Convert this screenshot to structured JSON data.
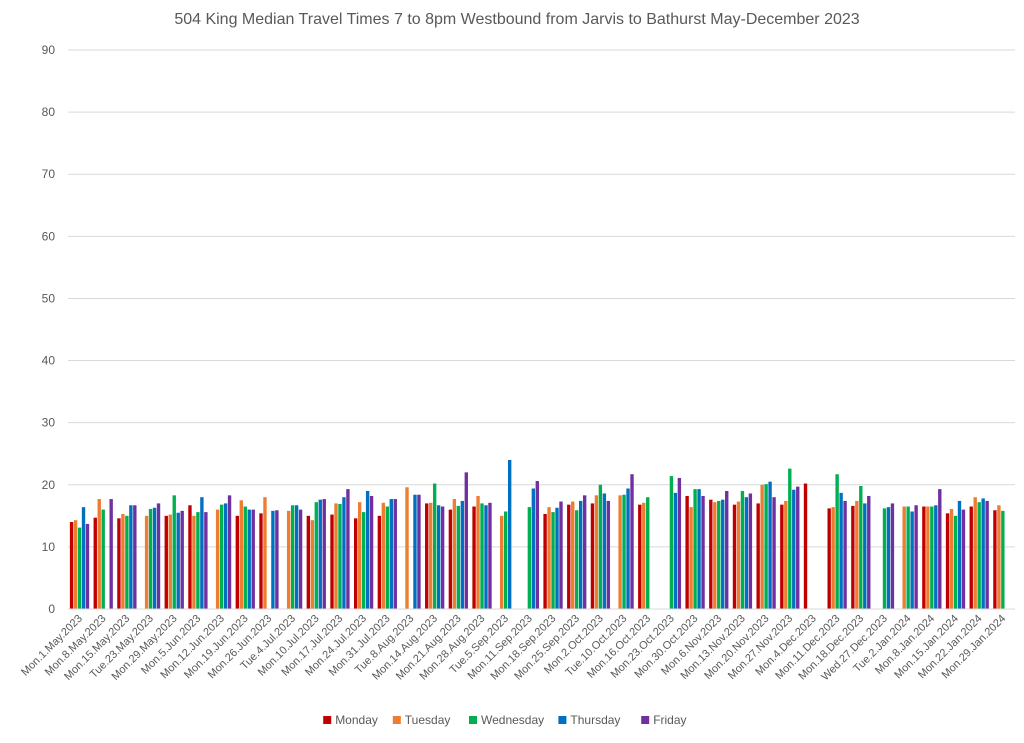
{
  "chart_data": {
    "type": "bar",
    "title": "504 King Median Travel Times 7 to 8pm Westbound from Jarvis to Bathurst May-December 2023",
    "xlabel": "",
    "ylabel": "",
    "ylim": [
      0,
      90
    ],
    "yticks": [
      0,
      10,
      20,
      30,
      40,
      50,
      60,
      70,
      80,
      90
    ],
    "grid": true,
    "legend_position": "bottom",
    "categories": [
      "Mon.1.May.2023",
      "Mon.8.May.2023",
      "Mon.15.May.2023",
      "Tue.23.May.2023",
      "Mon.29.May.2023",
      "Mon.5.Jun.2023",
      "Mon.12.Jun.2023",
      "Mon.19.Jun.2023",
      "Mon.26.Jun.2023",
      "Tue.4.Jul.2023",
      "Mon.10.Jul.2023",
      "Mon.17.Jul.2023",
      "Mon.24.Jul.2023",
      "Mon.31.Jul.2023",
      "Tue.8.Aug.2023",
      "Mon.14.Aug.2023",
      "Mon.21.Aug.2023",
      "Mon.28.Aug.2023",
      "Tue.5.Sep.2023",
      "Mon.11.Sep.2023",
      "Mon.18.Sep.2023",
      "Mon.25.Sep.2023",
      "Mon.2.Oct.2023",
      "Tue.10.Oct.2023",
      "Mon.16.Oct.2023",
      "Mon.23.Oct.2023",
      "Mon.30.Oct.2023",
      "Mon.6.Nov.2023",
      "Mon.13.Nov.2023",
      "Mon.20.Nov.2023",
      "Mon.27.Nov.2023",
      "Mon.4.Dec.2023",
      "Mon.11.Dec.2023",
      "Mon.18.Dec.2023",
      "Wed.27.Dec.2023",
      "Tue.2.Jan.2024",
      "Mon.8.Jan.2024",
      "Mon.15.Jan.2024",
      "Mon.22.Jan.2024",
      "Mon.29.Jan.2024"
    ],
    "series": [
      {
        "name": "Monday",
        "color": "#c00000",
        "values": [
          14.0,
          14.7,
          14.6,
          null,
          15.0,
          16.7,
          null,
          15.0,
          15.4,
          null,
          15.0,
          15.2,
          14.6,
          15.0,
          null,
          17.0,
          16.0,
          16.5,
          null,
          null,
          15.3,
          16.8,
          17.0,
          null,
          16.8,
          null,
          18.2,
          17.6,
          16.8,
          17.0,
          16.8,
          20.2,
          16.2,
          16.6,
          null,
          null,
          16.5,
          15.4,
          16.5,
          15.9
        ]
      },
      {
        "name": "Tuesday",
        "color": "#ed7d31",
        "values": [
          14.3,
          17.7,
          15.3,
          15.0,
          15.2,
          15.0,
          16.0,
          17.5,
          18.0,
          15.8,
          14.3,
          17.0,
          17.2,
          17.1,
          19.6,
          17.1,
          17.7,
          18.2,
          15.0,
          null,
          16.4,
          17.3,
          18.3,
          18.3,
          17.1,
          null,
          16.4,
          17.2,
          17.3,
          20.0,
          17.4,
          null,
          16.4,
          17.4,
          null,
          16.5,
          16.5,
          16.1,
          18.0,
          16.7
        ]
      },
      {
        "name": "Wednesday",
        "color": "#00b050",
        "values": [
          13.1,
          16.0,
          15.0,
          16.1,
          18.3,
          15.6,
          16.8,
          16.5,
          null,
          16.7,
          17.2,
          16.9,
          15.6,
          16.5,
          null,
          20.2,
          16.6,
          17.0,
          15.7,
          16.4,
          15.6,
          15.9,
          20.0,
          18.4,
          18.0,
          21.4,
          19.3,
          17.4,
          19.0,
          20.1,
          22.6,
          null,
          21.7,
          19.8,
          16.2,
          16.5,
          16.5,
          15.0,
          17.2,
          15.8
        ]
      },
      {
        "name": "Thursday",
        "color": "#0070c0",
        "values": [
          16.4,
          null,
          16.7,
          16.3,
          15.5,
          18.0,
          17.0,
          16.0,
          15.8,
          16.7,
          17.6,
          18.0,
          19.0,
          17.7,
          18.4,
          16.7,
          17.4,
          16.7,
          24.0,
          19.4,
          16.3,
          17.4,
          18.6,
          19.4,
          null,
          18.7,
          19.3,
          17.6,
          18.0,
          20.5,
          19.2,
          null,
          18.7,
          17.0,
          16.4,
          15.7,
          16.7,
          17.4,
          17.8,
          null
        ]
      },
      {
        "name": "Friday",
        "color": "#7030a0",
        "values": [
          13.7,
          17.7,
          16.7,
          17.0,
          15.8,
          15.6,
          18.3,
          16.0,
          15.9,
          16.0,
          17.7,
          19.3,
          18.2,
          17.7,
          18.4,
          16.5,
          22.0,
          17.1,
          null,
          20.6,
          17.3,
          18.3,
          17.4,
          21.7,
          null,
          21.1,
          18.2,
          19.0,
          18.6,
          18.0,
          19.7,
          null,
          17.4,
          18.2,
          17.0,
          16.7,
          19.3,
          16.0,
          17.4,
          null
        ]
      }
    ]
  }
}
